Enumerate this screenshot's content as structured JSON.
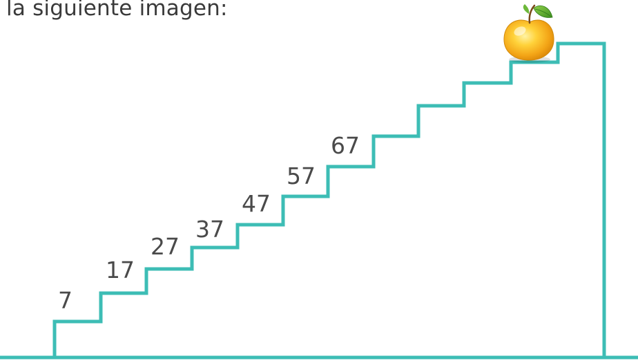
{
  "caption": "la siguiente imagen:",
  "steps": [
    "7",
    "17",
    "27",
    "37",
    "47",
    "57",
    "67"
  ],
  "colors": {
    "stair_line": "#3dbdb5",
    "text": "#4a4a4a",
    "apple_body": "#f6b21a",
    "apple_leaf": "#5aa52c"
  },
  "icons": {
    "apple": "apple-icon"
  }
}
